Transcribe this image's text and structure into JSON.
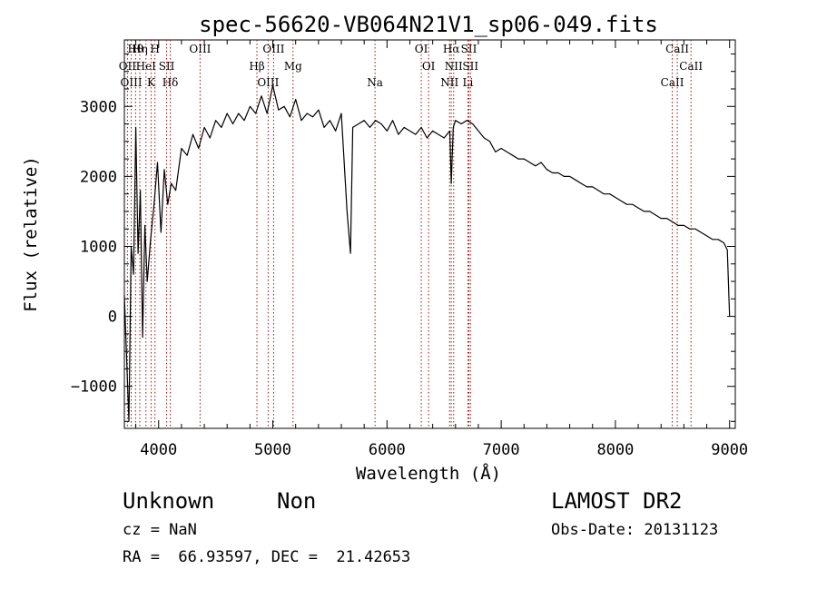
{
  "chart_data": {
    "type": "line",
    "title": "spec-56620-VB064N21V1_sp06-049.fits",
    "xlabel": "Wavelength (Å)",
    "ylabel": "Flux (relative)",
    "xlim": [
      3700,
      9050
    ],
    "ylim": [
      -1600,
      3950
    ],
    "x_ticks": [
      4000,
      5000,
      6000,
      7000,
      8000,
      9000
    ],
    "y_ticks": [
      -1000,
      0,
      1000,
      2000,
      3000
    ],
    "grid": false,
    "line_color": "#000000",
    "marker_color": "#a01010",
    "series": [
      {
        "x": [
          3700,
          3720,
          3740,
          3760,
          3780,
          3800,
          3820,
          3840,
          3860,
          3880,
          3900,
          3930,
          3960,
          3990,
          4020,
          4050,
          4080,
          4110,
          4150,
          4200,
          4250,
          4300,
          4350,
          4400,
          4450,
          4500,
          4550,
          4600,
          4650,
          4700,
          4750,
          4800,
          4850,
          4900,
          4950,
          5000,
          5050,
          5100,
          5150,
          5200,
          5250,
          5300,
          5350,
          5400,
          5450,
          5500,
          5550,
          5600,
          5650,
          5680,
          5700,
          5750,
          5800,
          5850,
          5900,
          5950,
          6000,
          6050,
          6100,
          6150,
          6200,
          6250,
          6300,
          6350,
          6400,
          6450,
          6500,
          6550,
          6563,
          6580,
          6600,
          6650,
          6700,
          6750,
          6800,
          6850,
          6900,
          6950,
          7000,
          7050,
          7100,
          7150,
          7200,
          7250,
          7300,
          7350,
          7400,
          7450,
          7500,
          7550,
          7600,
          7650,
          7700,
          7750,
          7800,
          7850,
          7900,
          7950,
          8000,
          8050,
          8100,
          8150,
          8200,
          8250,
          8300,
          8350,
          8400,
          8450,
          8500,
          8550,
          8600,
          8650,
          8700,
          8750,
          8800,
          8850,
          8900,
          8950,
          8980,
          9000
        ],
        "y": [
          300,
          -600,
          -1500,
          1000,
          600,
          2700,
          900,
          1800,
          -300,
          1300,
          500,
          1100,
          1600,
          2200,
          1200,
          2100,
          1600,
          1900,
          1800,
          2400,
          2300,
          2600,
          2400,
          2700,
          2550,
          2800,
          2700,
          2900,
          2750,
          2900,
          2800,
          3000,
          2900,
          3150,
          2900,
          3300,
          2950,
          3000,
          2850,
          3100,
          2800,
          2900,
          2850,
          2950,
          2700,
          2800,
          2650,
          2900,
          1500,
          900,
          2700,
          2750,
          2800,
          2700,
          2800,
          2750,
          2650,
          2800,
          2600,
          2700,
          2650,
          2600,
          2700,
          2550,
          2650,
          2600,
          2550,
          2650,
          1900,
          2700,
          2800,
          2750,
          2800,
          2750,
          2650,
          2550,
          2500,
          2350,
          2400,
          2350,
          2300,
          2250,
          2250,
          2200,
          2150,
          2200,
          2100,
          2050,
          2050,
          2000,
          2000,
          1950,
          1900,
          1850,
          1850,
          1800,
          1750,
          1750,
          1700,
          1650,
          1600,
          1600,
          1550,
          1500,
          1500,
          1450,
          1400,
          1400,
          1350,
          1300,
          1300,
          1250,
          1250,
          1200,
          1150,
          1100,
          1100,
          1050,
          950,
          0
        ]
      }
    ],
    "line_markers": [
      {
        "label": "Hθ",
        "x": 3798
      },
      {
        "label": "OII",
        "x": 3727
      },
      {
        "label": "OIII",
        "x": 3760
      },
      {
        "label": "Hη",
        "x": 3835
      },
      {
        "label": "HeI",
        "x": 3889
      },
      {
        "label": "K",
        "x": 3934
      },
      {
        "label": "H",
        "x": 3968
      },
      {
        "label": "SII",
        "x": 4070
      },
      {
        "label": "Hδ",
        "x": 4102
      },
      {
        "label": "OIII",
        "x": 4363
      },
      {
        "label": "Hβ",
        "x": 4861
      },
      {
        "label": "OIII",
        "x": 4959
      },
      {
        "label": "OIII",
        "x": 5007
      },
      {
        "label": "Mg",
        "x": 5177
      },
      {
        "label": "Na",
        "x": 5895
      },
      {
        "label": "OI",
        "x": 6300
      },
      {
        "label": "OI",
        "x": 6364
      },
      {
        "label": "NII",
        "x": 6548
      },
      {
        "label": "Hα",
        "x": 6563
      },
      {
        "label": "NII",
        "x": 6584
      },
      {
        "label": "Li",
        "x": 6708
      },
      {
        "label": "SII",
        "x": 6717
      },
      {
        "label": "SII",
        "x": 6731
      },
      {
        "label": "CaII",
        "x": 8498
      },
      {
        "label": "CaII",
        "x": 8542
      },
      {
        "label": "CaII",
        "x": 8662
      }
    ]
  },
  "info": {
    "class": "Unknown",
    "subclass": "Non",
    "survey": "LAMOST DR2",
    "cz": "cz = NaN",
    "obs_date": "Obs-Date: 20131123",
    "coords": "RA =  66.93597, DEC =  21.42653"
  }
}
